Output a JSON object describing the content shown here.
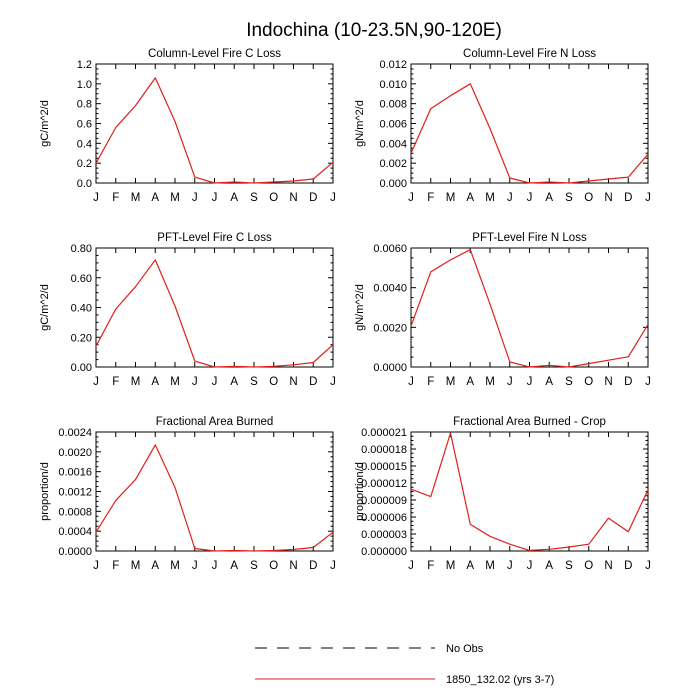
{
  "page_title": "Indochina (10-23.5N,90-120E)",
  "legend": {
    "entries": [
      {
        "label": "No Obs",
        "style": "dashed",
        "color": "#000000"
      },
      {
        "label": "1850_132.02 (yrs 3-7)",
        "style": "solid",
        "color": "#e0201b"
      }
    ]
  },
  "chart_data": [
    {
      "type": "line",
      "title": "Column-Level Fire C Loss",
      "ylabel": "gC/m^2/d",
      "categories": [
        "J",
        "F",
        "M",
        "A",
        "M",
        "J",
        "J",
        "A",
        "S",
        "O",
        "N",
        "D",
        "J"
      ],
      "ylim": [
        0,
        1.2
      ],
      "yticks": [
        "0.0",
        "0.2",
        "0.4",
        "0.6",
        "0.8",
        "1.0",
        "1.2"
      ],
      "series": [
        {
          "color": "#e0201b",
          "values": [
            0.2,
            0.56,
            0.78,
            1.06,
            0.62,
            0.06,
            0.0,
            0.01,
            0.0,
            0.01,
            0.02,
            0.04,
            0.21
          ]
        }
      ]
    },
    {
      "type": "line",
      "title": "Column-Level Fire N Loss",
      "ylabel": "gN/m^2/d",
      "categories": [
        "J",
        "F",
        "M",
        "A",
        "M",
        "J",
        "J",
        "A",
        "S",
        "O",
        "N",
        "D",
        "J"
      ],
      "ylim": [
        0,
        0.012
      ],
      "yticks": [
        "0.000",
        "0.002",
        "0.004",
        "0.006",
        "0.008",
        "0.010",
        "0.012"
      ],
      "series": [
        {
          "color": "#e0201b",
          "values": [
            0.003,
            0.0075,
            0.0088,
            0.01,
            0.0055,
            0.0005,
            0.0,
            0.0001,
            0.0,
            0.0002,
            0.0004,
            0.0006,
            0.0029
          ]
        }
      ]
    },
    {
      "type": "line",
      "title": "PFT-Level Fire C Loss",
      "ylabel": "gC/m^2/d",
      "categories": [
        "J",
        "F",
        "M",
        "A",
        "M",
        "J",
        "J",
        "A",
        "S",
        "O",
        "N",
        "D",
        "J"
      ],
      "ylim": [
        0,
        0.8
      ],
      "yticks": [
        "0.00",
        "0.20",
        "0.40",
        "0.60",
        "0.80"
      ],
      "series": [
        {
          "color": "#e0201b",
          "values": [
            0.14,
            0.39,
            0.54,
            0.72,
            0.41,
            0.04,
            0.0,
            0.005,
            0.0,
            0.005,
            0.015,
            0.03,
            0.15
          ]
        }
      ]
    },
    {
      "type": "line",
      "title": "PFT-Level Fire N Loss",
      "ylabel": "gN/m^2/d",
      "categories": [
        "J",
        "F",
        "M",
        "A",
        "M",
        "J",
        "J",
        "A",
        "S",
        "O",
        "N",
        "D",
        "J"
      ],
      "ylim": [
        0,
        0.007
      ],
      "yticks": [
        "0.0000",
        "0.0020",
        "0.0040",
        "0.0060"
      ],
      "series": [
        {
          "color": "#e0201b",
          "values": [
            0.0024,
            0.0056,
            0.0063,
            0.0069,
            0.0037,
            0.0003,
            0.0,
            0.0001,
            0.0,
            0.0002,
            0.0004,
            0.0006,
            0.0025
          ]
        }
      ]
    },
    {
      "type": "line",
      "title": "Fractional Area Burned",
      "ylabel": "proportion/d",
      "categories": [
        "J",
        "F",
        "M",
        "A",
        "M",
        "J",
        "J",
        "A",
        "S",
        "O",
        "N",
        "D",
        "J"
      ],
      "ylim": [
        0,
        0.0024
      ],
      "yticks": [
        "0.0000",
        "0.0004",
        "0.0008",
        "0.0012",
        "0.0016",
        "0.0020",
        "0.0024"
      ],
      "series": [
        {
          "color": "#e0201b",
          "values": [
            0.00038,
            0.00102,
            0.00144,
            0.00214,
            0.00128,
            5e-05,
            0.0,
            1e-05,
            0.0,
            1e-05,
            3e-05,
            7e-05,
            0.00038
          ]
        }
      ]
    },
    {
      "type": "line",
      "title": "Fractional Area Burned - Crop",
      "ylabel": "proportion/d",
      "categories": [
        "J",
        "F",
        "M",
        "A",
        "M",
        "J",
        "J",
        "A",
        "S",
        "O",
        "N",
        "D",
        "J"
      ],
      "ylim": [
        0,
        2.1e-05
      ],
      "yticks": [
        "0.000000",
        "0.000003",
        "0.000006",
        "0.000009",
        "0.000012",
        "0.000015",
        "0.000018",
        "0.000021"
      ],
      "series": [
        {
          "color": "#e0201b",
          "values": [
            1.09e-05,
            9.6e-06,
            2.08e-05,
            4.7e-06,
            2.6e-06,
            1.2e-06,
            1e-07,
            3e-07,
            7e-07,
            1.2e-06,
            5.8e-06,
            3.4e-06,
            1.08e-05
          ]
        }
      ]
    }
  ]
}
